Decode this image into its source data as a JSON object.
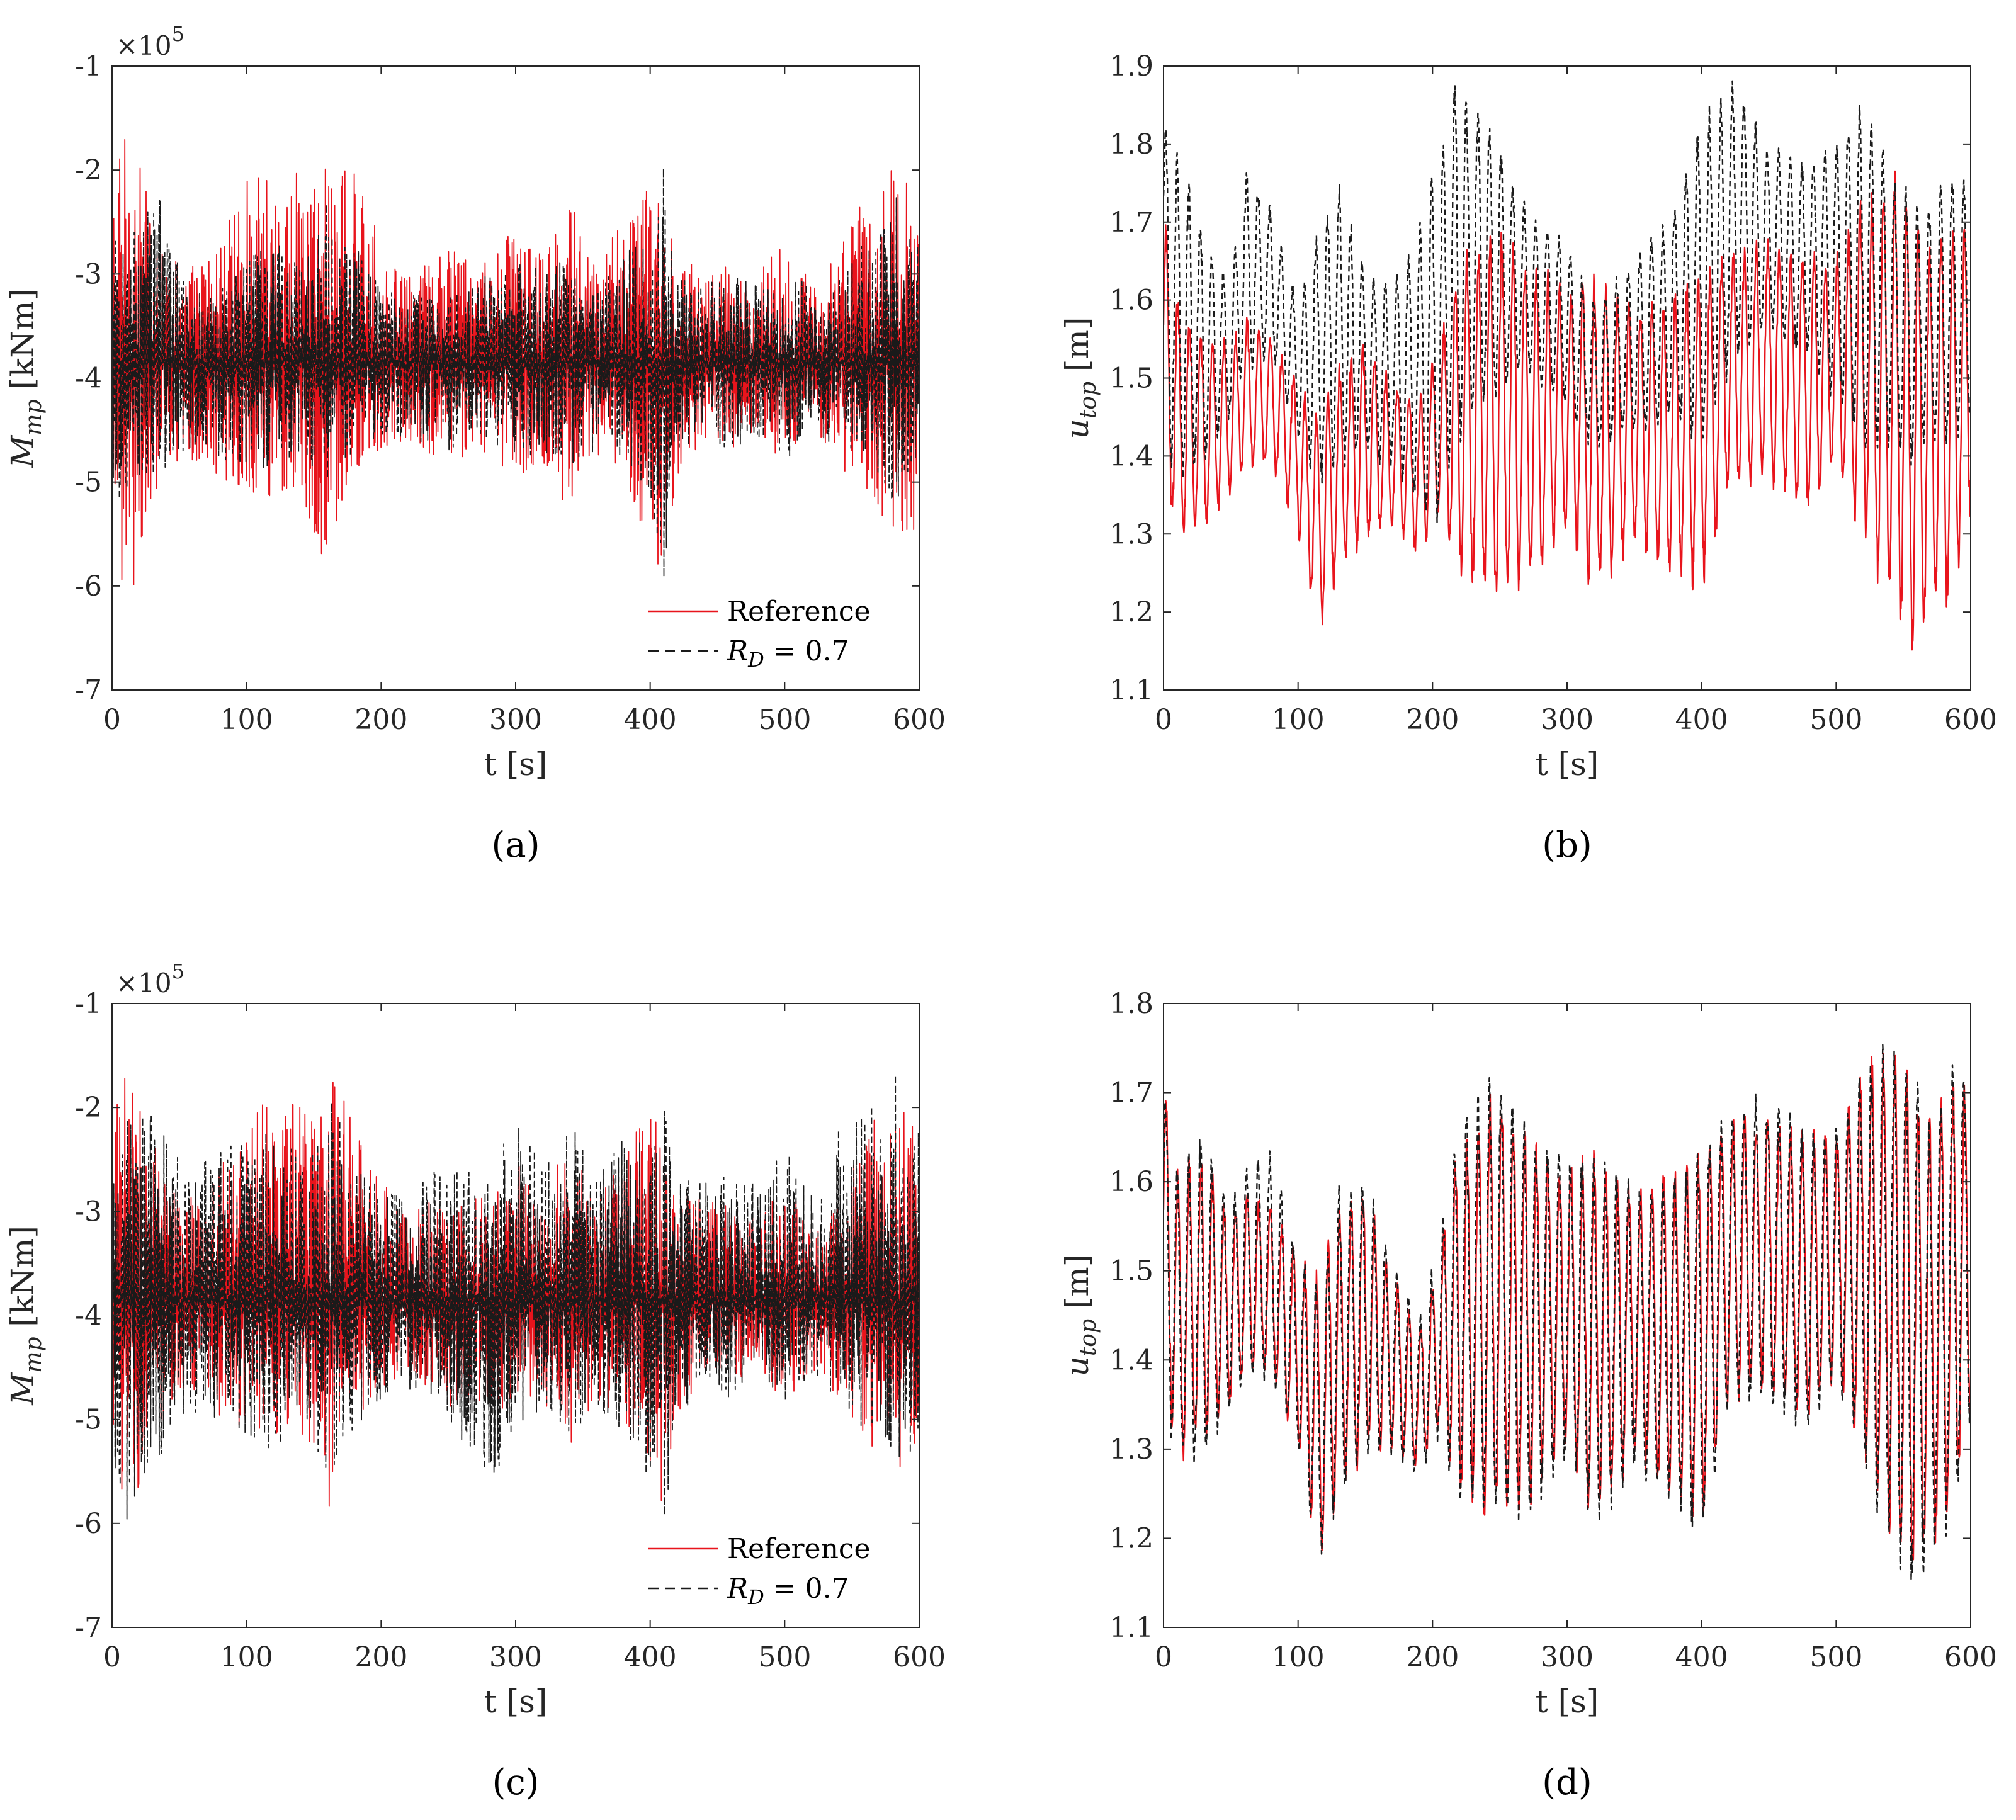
{
  "chart_data": [
    {
      "panel_label": "(a)",
      "type": "line",
      "xlabel": "t [s]",
      "ylabel": "M_mp [kNm]",
      "ylabel_main": "M",
      "ylabel_sub": "mp",
      "ylabel_unit": "[kNm]",
      "xlim": [
        0,
        600
      ],
      "ylim": [
        -7,
        -1
      ],
      "xticks": [
        "0",
        "100",
        "200",
        "300",
        "400",
        "500",
        "600"
      ],
      "yticks": [
        "-7",
        "-6",
        "-5",
        "-4",
        "-3",
        "-2",
        "-1"
      ],
      "y_multiplier": "×10",
      "y_multiplier_exp": "5",
      "legend": {
        "position": "bottom-right",
        "entries": [
          "Reference",
          "R_D = 0.7"
        ],
        "entry2_main": "R",
        "entry2_sub": "D",
        "entry2_rest": " = 0.7"
      },
      "series": [
        {
          "name": "Reference",
          "color": "#e8141c",
          "style": "solid",
          "mean": -3.85,
          "envelope_t": [
            0,
            10,
            30,
            50,
            70,
            100,
            120,
            140,
            160,
            180,
            200,
            220,
            250,
            280,
            300,
            320,
            340,
            360,
            380,
            400,
            410,
            420,
            440,
            460,
            480,
            500,
            520,
            540,
            560,
            580,
            600
          ],
          "envelope_upper": [
            -2.2,
            -1.5,
            -2.3,
            -2.9,
            -2.8,
            -2.1,
            -1.8,
            -2.0,
            -1.6,
            -2.0,
            -2.7,
            -3.0,
            -2.7,
            -2.9,
            -2.5,
            -2.8,
            -2.3,
            -2.9,
            -2.4,
            -1.9,
            -2.4,
            -2.8,
            -2.9,
            -2.9,
            -3.0,
            -2.6,
            -3.1,
            -2.8,
            -2.2,
            -1.8,
            -2.3
          ],
          "envelope_lower": [
            -5.2,
            -6.4,
            -5.2,
            -4.8,
            -4.9,
            -5.1,
            -5.2,
            -5.1,
            -5.9,
            -5.0,
            -4.7,
            -4.6,
            -4.9,
            -4.8,
            -5.0,
            -4.8,
            -5.3,
            -4.8,
            -5.0,
            -5.6,
            -6.1,
            -5.0,
            -4.6,
            -4.7,
            -4.5,
            -4.9,
            -4.5,
            -4.8,
            -5.2,
            -5.5,
            -5.7
          ]
        },
        {
          "name": "R_D = 0.7",
          "color": "#1a1a1a",
          "style": "dashed",
          "mean": -3.85,
          "envelope_t": [
            0,
            10,
            30,
            50,
            70,
            100,
            120,
            140,
            160,
            180,
            200,
            220,
            250,
            280,
            300,
            320,
            340,
            360,
            380,
            400,
            410,
            420,
            440,
            460,
            480,
            500,
            520,
            540,
            560,
            580,
            600
          ],
          "envelope_upper": [
            -2.7,
            -2.6,
            -2.0,
            -2.9,
            -3.2,
            -2.8,
            -2.6,
            -2.8,
            -2.3,
            -2.7,
            -3.0,
            -3.1,
            -3.2,
            -3.0,
            -2.9,
            -2.8,
            -2.9,
            -3.1,
            -2.8,
            -2.6,
            -1.9,
            -3.0,
            -3.1,
            -3.0,
            -3.1,
            -3.0,
            -3.1,
            -3.0,
            -2.6,
            -1.8,
            -2.7
          ],
          "envelope_lower": [
            -5.3,
            -5.1,
            -5.0,
            -4.7,
            -4.8,
            -4.9,
            -4.9,
            -4.8,
            -5.0,
            -4.8,
            -4.6,
            -4.6,
            -4.7,
            -4.6,
            -4.8,
            -4.7,
            -4.9,
            -4.7,
            -4.8,
            -5.2,
            -6.0,
            -4.8,
            -4.6,
            -4.7,
            -4.6,
            -4.8,
            -4.6,
            -4.7,
            -4.8,
            -5.3,
            -5.0
          ]
        }
      ]
    },
    {
      "panel_label": "(b)",
      "type": "line",
      "xlabel": "t [s]",
      "ylabel": "u_top [m]",
      "ylabel_main": "u",
      "ylabel_sub": "top",
      "ylabel_unit": "[m]",
      "xlim": [
        0,
        600
      ],
      "ylim": [
        1.1,
        1.9
      ],
      "xticks": [
        "0",
        "100",
        "200",
        "300",
        "400",
        "500",
        "600"
      ],
      "yticks": [
        "1.1",
        "1.2",
        "1.3",
        "1.4",
        "1.5",
        "1.6",
        "1.7",
        "1.8",
        "1.9"
      ],
      "series": [
        {
          "name": "Reference",
          "color": "#e8141c",
          "style": "solid",
          "envelope_t": [
            0,
            10,
            30,
            50,
            60,
            80,
            100,
            115,
            130,
            150,
            170,
            190,
            205,
            220,
            250,
            270,
            300,
            320,
            350,
            380,
            400,
            420,
            450,
            480,
            500,
            520,
            540,
            555,
            570,
            585,
            600
          ],
          "envelope_upper": [
            1.72,
            1.62,
            1.56,
            1.55,
            1.58,
            1.56,
            1.5,
            1.47,
            1.52,
            1.55,
            1.5,
            1.48,
            1.55,
            1.66,
            1.7,
            1.66,
            1.62,
            1.64,
            1.6,
            1.62,
            1.64,
            1.67,
            1.68,
            1.67,
            1.66,
            1.74,
            1.78,
            1.74,
            1.68,
            1.7,
            1.7
          ],
          "envelope_lower": [
            1.36,
            1.28,
            1.3,
            1.35,
            1.38,
            1.38,
            1.3,
            1.16,
            1.24,
            1.29,
            1.3,
            1.27,
            1.32,
            1.24,
            1.21,
            1.22,
            1.3,
            1.21,
            1.28,
            1.24,
            1.22,
            1.35,
            1.36,
            1.32,
            1.38,
            1.28,
            1.2,
            1.14,
            1.18,
            1.2,
            1.32
          ]
        },
        {
          "name": "R_D = 0.7",
          "color": "#1a1a1a",
          "style": "dashed",
          "envelope_t": [
            0,
            10,
            30,
            50,
            60,
            80,
            100,
            115,
            130,
            150,
            170,
            190,
            205,
            215,
            240,
            270,
            300,
            320,
            350,
            380,
            400,
            425,
            450,
            480,
            500,
            520,
            540,
            555,
            570,
            585,
            600
          ],
          "envelope_upper": [
            1.86,
            1.8,
            1.7,
            1.62,
            1.78,
            1.72,
            1.6,
            1.7,
            1.76,
            1.65,
            1.62,
            1.7,
            1.8,
            1.88,
            1.84,
            1.72,
            1.68,
            1.6,
            1.66,
            1.72,
            1.84,
            1.89,
            1.8,
            1.78,
            1.82,
            1.86,
            1.78,
            1.74,
            1.72,
            1.78,
            1.76
          ],
          "envelope_lower": [
            1.4,
            1.36,
            1.38,
            1.45,
            1.5,
            1.52,
            1.42,
            1.36,
            1.38,
            1.4,
            1.38,
            1.32,
            1.3,
            1.4,
            1.46,
            1.5,
            1.46,
            1.4,
            1.42,
            1.44,
            1.4,
            1.52,
            1.56,
            1.52,
            1.46,
            1.4,
            1.4,
            1.38,
            1.42,
            1.4,
            1.44
          ]
        }
      ]
    },
    {
      "panel_label": "(c)",
      "type": "line",
      "xlabel": "t [s]",
      "ylabel": "M_mp [kNm]",
      "ylabel_main": "M",
      "ylabel_sub": "mp",
      "ylabel_unit": "[kNm]",
      "xlim": [
        0,
        600
      ],
      "ylim": [
        -7,
        -1
      ],
      "xticks": [
        "0",
        "100",
        "200",
        "300",
        "400",
        "500",
        "600"
      ],
      "yticks": [
        "-7",
        "-6",
        "-5",
        "-4",
        "-3",
        "-2",
        "-1"
      ],
      "y_multiplier": "×10",
      "y_multiplier_exp": "5",
      "legend": {
        "position": "bottom-right",
        "entries": [
          "Reference",
          "R_D = 0.7"
        ],
        "entry2_main": "R",
        "entry2_sub": "D",
        "entry2_rest": " = 0.7"
      },
      "series": [
        {
          "name": "Reference",
          "color": "#e8141c",
          "style": "solid",
          "mean": -3.85,
          "envelope_t": [
            0,
            10,
            30,
            50,
            70,
            100,
            120,
            140,
            160,
            180,
            200,
            220,
            250,
            280,
            300,
            320,
            340,
            360,
            380,
            400,
            410,
            420,
            440,
            460,
            480,
            500,
            520,
            540,
            560,
            580,
            600
          ],
          "envelope_upper": [
            -2.2,
            -1.5,
            -2.3,
            -2.9,
            -2.8,
            -2.1,
            -1.8,
            -2.0,
            -1.6,
            -2.0,
            -2.7,
            -3.0,
            -2.7,
            -2.9,
            -2.5,
            -2.8,
            -2.3,
            -2.9,
            -2.4,
            -1.9,
            -2.4,
            -2.8,
            -2.9,
            -2.9,
            -3.0,
            -2.6,
            -3.1,
            -2.8,
            -2.2,
            -1.8,
            -2.3
          ],
          "envelope_lower": [
            -5.2,
            -6.4,
            -5.2,
            -4.8,
            -4.9,
            -5.1,
            -5.2,
            -5.1,
            -5.9,
            -5.0,
            -4.7,
            -4.6,
            -4.9,
            -4.8,
            -5.0,
            -4.8,
            -5.3,
            -4.8,
            -5.0,
            -5.6,
            -6.1,
            -5.0,
            -4.6,
            -4.7,
            -4.5,
            -4.9,
            -4.5,
            -4.8,
            -5.2,
            -5.5,
            -5.7
          ]
        },
        {
          "name": "R_D = 0.7",
          "color": "#1a1a1a",
          "style": "dashed",
          "mean": -3.85,
          "envelope_t": [
            0,
            10,
            30,
            50,
            70,
            100,
            120,
            140,
            160,
            180,
            200,
            220,
            250,
            280,
            300,
            320,
            340,
            360,
            380,
            400,
            410,
            420,
            440,
            460,
            480,
            500,
            520,
            540,
            560,
            580,
            600
          ],
          "envelope_upper": [
            -2.4,
            -1.9,
            -1.9,
            -2.5,
            -2.5,
            -2.2,
            -2.2,
            -2.4,
            -1.7,
            -2.3,
            -2.8,
            -2.8,
            -2.5,
            -2.6,
            -2.0,
            -2.6,
            -2.1,
            -2.7,
            -2.2,
            -2.1,
            -1.7,
            -2.6,
            -2.7,
            -2.6,
            -2.7,
            -2.4,
            -2.8,
            -2.2,
            -1.9,
            -1.6,
            -2.2
          ],
          "envelope_lower": [
            -5.4,
            -6.0,
            -5.6,
            -5.0,
            -5.1,
            -5.2,
            -5.3,
            -5.2,
            -5.6,
            -5.1,
            -4.8,
            -4.7,
            -5.0,
            -5.7,
            -5.1,
            -4.9,
            -5.4,
            -4.9,
            -5.1,
            -5.6,
            -6.0,
            -5.1,
            -4.7,
            -4.8,
            -4.6,
            -5.0,
            -4.6,
            -4.9,
            -5.1,
            -5.3,
            -5.6
          ]
        }
      ]
    },
    {
      "panel_label": "(d)",
      "type": "line",
      "xlabel": "t [s]",
      "ylabel": "u_top [m]",
      "ylabel_main": "u",
      "ylabel_sub": "top",
      "ylabel_unit": "[m]",
      "xlim": [
        0,
        600
      ],
      "ylim": [
        1.1,
        1.8
      ],
      "xticks": [
        "0",
        "100",
        "200",
        "300",
        "400",
        "500",
        "600"
      ],
      "yticks": [
        "1.1",
        "1.2",
        "1.3",
        "1.4",
        "1.5",
        "1.6",
        "1.7",
        "1.8"
      ],
      "series": [
        {
          "name": "Reference",
          "color": "#e8141c",
          "style": "solid",
          "envelope_t": [
            0,
            10,
            30,
            50,
            60,
            80,
            100,
            115,
            130,
            150,
            170,
            190,
            205,
            220,
            250,
            270,
            300,
            320,
            350,
            380,
            400,
            420,
            450,
            480,
            500,
            520,
            540,
            555,
            570,
            585,
            600
          ],
          "envelope_upper": [
            1.72,
            1.62,
            1.64,
            1.56,
            1.6,
            1.58,
            1.52,
            1.5,
            1.58,
            1.6,
            1.5,
            1.44,
            1.52,
            1.66,
            1.72,
            1.66,
            1.62,
            1.64,
            1.6,
            1.62,
            1.64,
            1.68,
            1.68,
            1.66,
            1.66,
            1.74,
            1.78,
            1.74,
            1.68,
            1.72,
            1.72
          ],
          "envelope_lower": [
            1.36,
            1.28,
            1.3,
            1.35,
            1.38,
            1.38,
            1.3,
            1.16,
            1.24,
            1.29,
            1.3,
            1.27,
            1.32,
            1.24,
            1.21,
            1.22,
            1.3,
            1.21,
            1.28,
            1.24,
            1.2,
            1.35,
            1.36,
            1.32,
            1.38,
            1.28,
            1.2,
            1.14,
            1.18,
            1.2,
            1.32
          ]
        },
        {
          "name": "R_D = 0.7",
          "color": "#1a1a1a",
          "style": "dashed",
          "envelope_t": [
            0,
            10,
            30,
            50,
            60,
            80,
            100,
            115,
            130,
            150,
            170,
            190,
            205,
            220,
            250,
            270,
            300,
            320,
            350,
            380,
            400,
            420,
            450,
            480,
            500,
            520,
            540,
            555,
            570,
            585,
            600
          ],
          "envelope_upper": [
            1.73,
            1.62,
            1.66,
            1.58,
            1.62,
            1.64,
            1.52,
            1.5,
            1.6,
            1.61,
            1.52,
            1.45,
            1.54,
            1.68,
            1.73,
            1.67,
            1.63,
            1.64,
            1.6,
            1.62,
            1.64,
            1.7,
            1.7,
            1.66,
            1.67,
            1.74,
            1.79,
            1.74,
            1.68,
            1.76,
            1.74
          ],
          "envelope_lower": [
            1.34,
            1.27,
            1.29,
            1.34,
            1.37,
            1.37,
            1.29,
            1.16,
            1.23,
            1.28,
            1.29,
            1.26,
            1.31,
            1.23,
            1.21,
            1.21,
            1.29,
            1.2,
            1.27,
            1.23,
            1.19,
            1.34,
            1.35,
            1.31,
            1.37,
            1.27,
            1.19,
            1.13,
            1.17,
            1.19,
            1.31
          ]
        }
      ]
    }
  ]
}
